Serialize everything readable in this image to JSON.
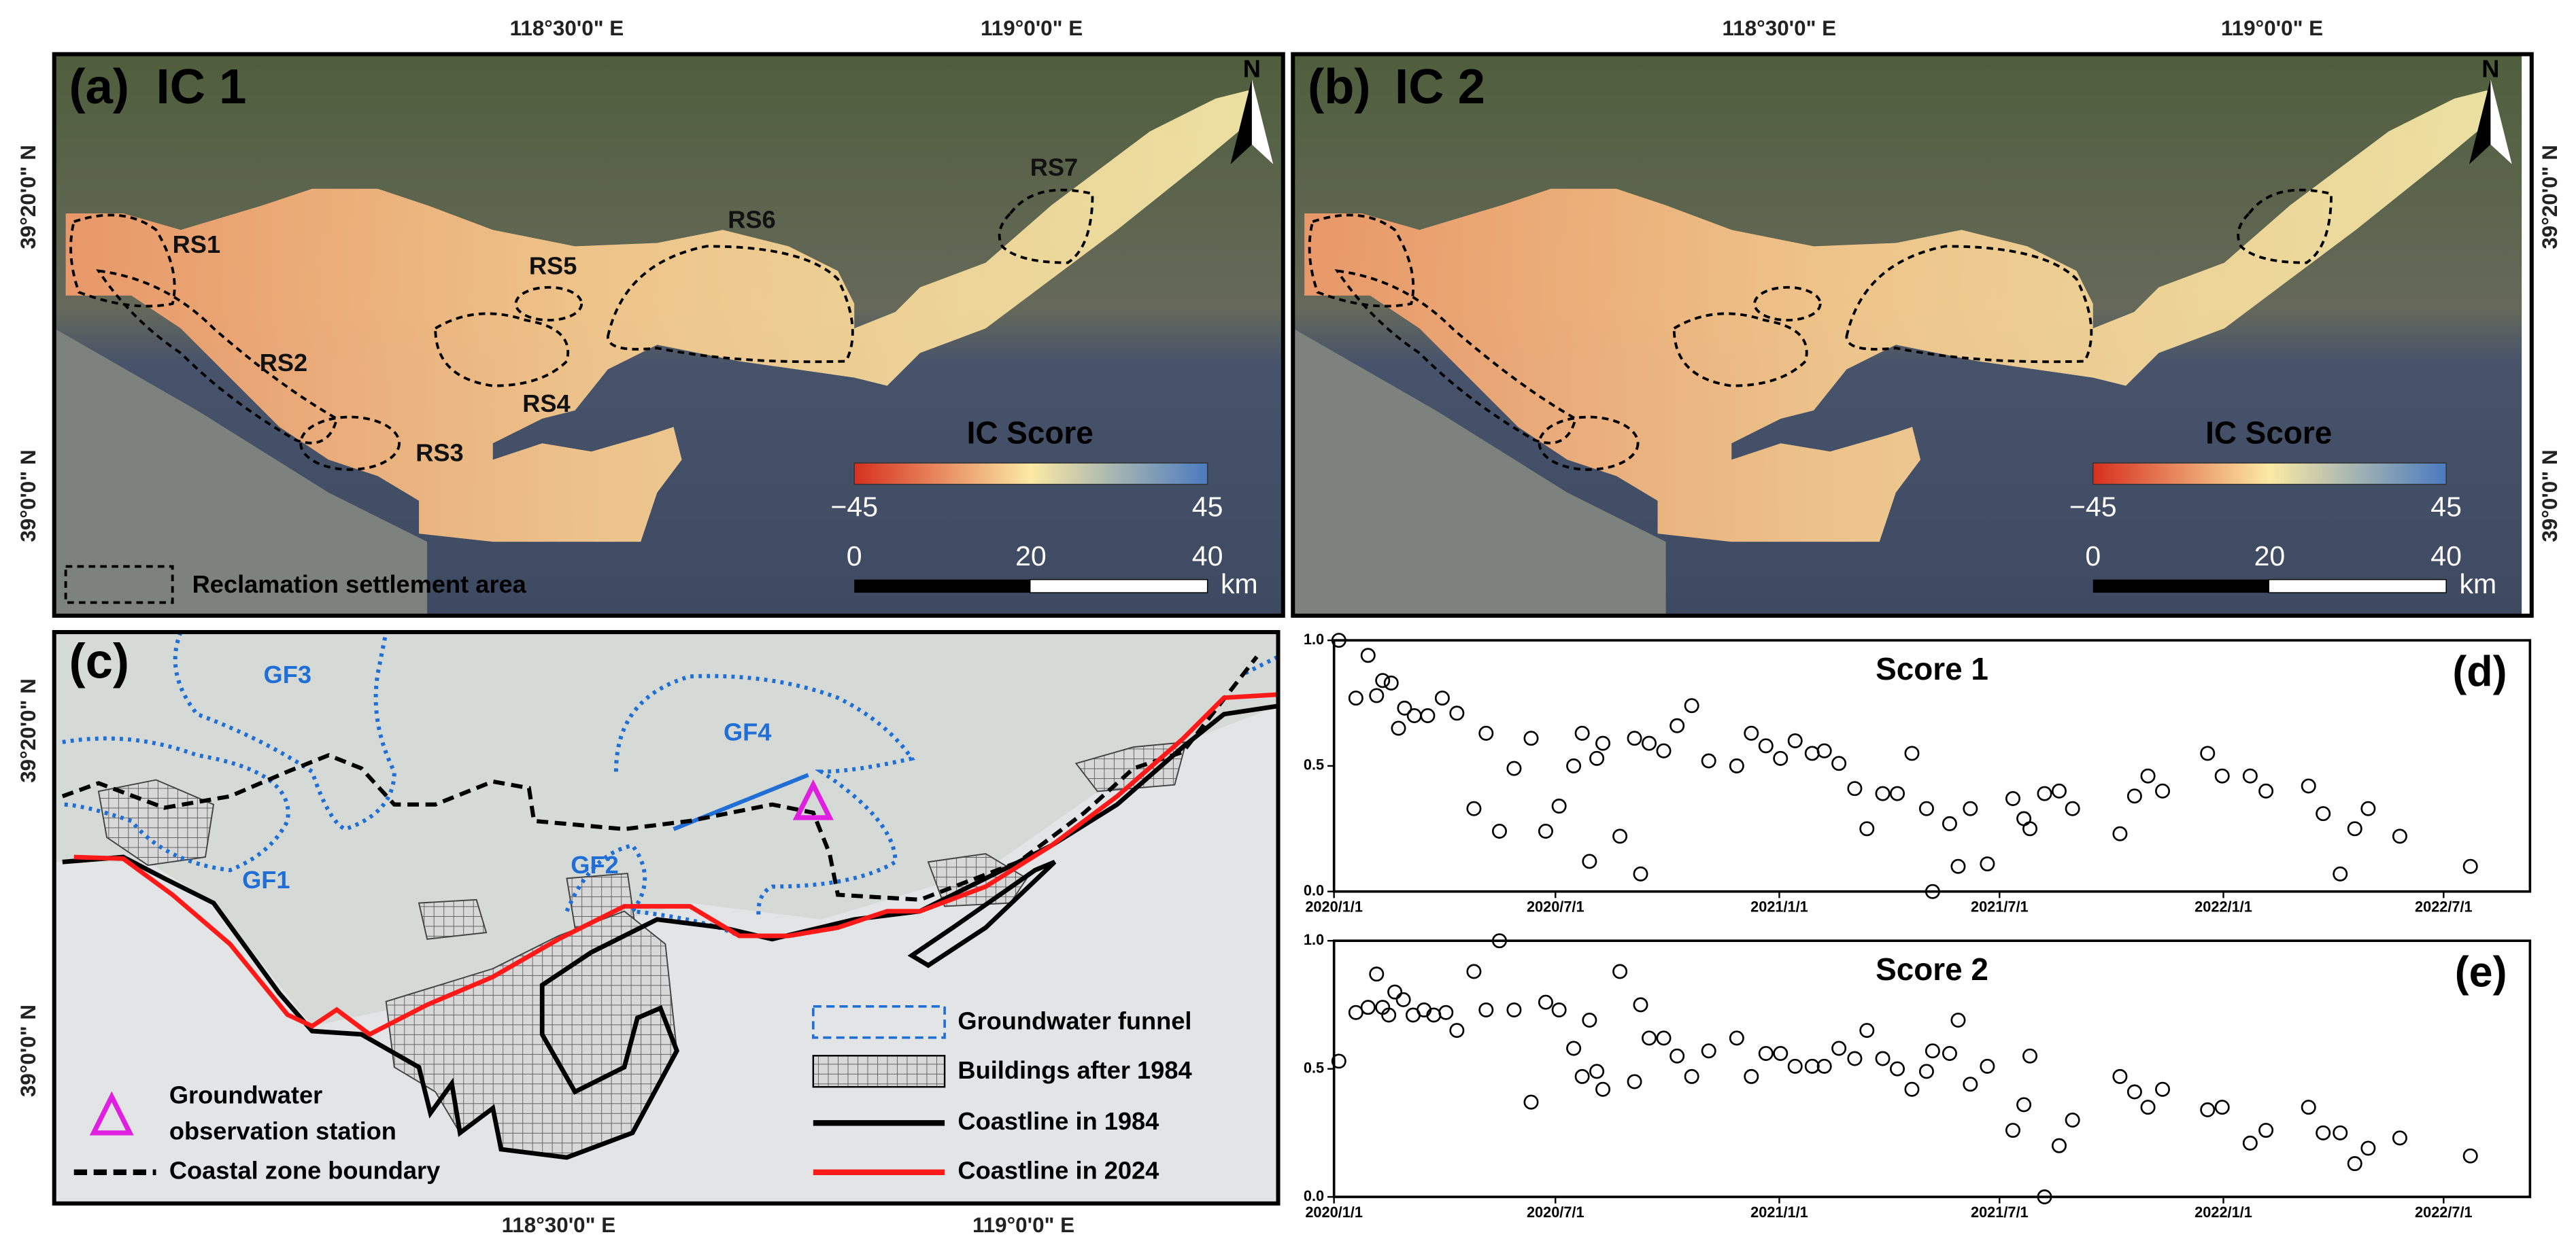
{
  "maps": {
    "lon_labels": [
      "118°30'0\" E",
      "119°0'0\" E"
    ],
    "lat_labels": [
      "39°20'0\" N",
      "39°0'0\" N"
    ],
    "north": "N",
    "a": {
      "label": "(a)",
      "title": "IC 1",
      "sites": [
        "RS1",
        "RS2",
        "RS3",
        "RS4",
        "RS5",
        "RS6",
        "RS7"
      ],
      "legend": "Reclamation settlement area"
    },
    "b": {
      "label": "(b)",
      "title": "IC 2"
    },
    "colorbar": {
      "title": "IC Score",
      "min": "−45",
      "max": "45"
    },
    "scalebar": {
      "ticks": [
        "0",
        "20",
        "40"
      ],
      "unit": "km"
    },
    "c": {
      "label": "(c)",
      "funnels": [
        "GF1",
        "GF2",
        "GF3",
        "GF4"
      ],
      "station": [
        "Groundwater",
        "observation station"
      ],
      "boundary": "Coastal zone boundary",
      "legend": [
        "Groundwater funnel",
        "Buildings after 1984",
        "Coastline in 1984",
        "Coastline in 2024"
      ]
    }
  },
  "chart_data": [
    {
      "type": "scatter",
      "title": "Score 1",
      "panel_label": "(d)",
      "color": "#000000",
      "x": [
        "2020/1/5",
        "2020/1/19",
        "2020/1/29",
        "2020/2/5",
        "2020/2/10",
        "2020/2/17",
        "2020/2/23",
        "2020/2/28",
        "2020/3/7",
        "2020/3/18",
        "2020/3/30",
        "2020/4/11",
        "2020/4/25",
        "2020/5/5",
        "2020/5/16",
        "2020/5/28",
        "2020/6/11",
        "2020/6/23",
        "2020/7/4",
        "2020/7/16",
        "2020/7/23",
        "2020/7/29",
        "2020/8/4",
        "2020/8/9",
        "2020/8/23",
        "2020/9/4",
        "2020/9/9",
        "2020/9/16",
        "2020/9/28",
        "2020/10/9",
        "2020/10/21",
        "2020/11/4",
        "2020/11/27",
        "2020/12/9",
        "2020/12/21",
        "2021/1/2",
        "2021/1/14",
        "2021/1/28",
        "2021/2/7",
        "2021/2/19",
        "2021/3/4",
        "2021/3/14",
        "2021/3/27",
        "2021/4/8",
        "2021/4/20",
        "2021/5/2",
        "2021/5/7",
        "2021/5/21",
        "2021/5/28",
        "2021/6/7",
        "2021/6/21",
        "2021/7/12",
        "2021/7/21",
        "2021/7/26",
        "2021/8/7",
        "2021/8/19",
        "2021/8/30",
        "2021/10/8",
        "2021/10/20",
        "2021/10/31",
        "2021/11/12",
        "2021/12/19",
        "2021/12/31",
        "2022/1/23",
        "2022/2/5",
        "2022/3/12",
        "2022/3/24",
        "2022/4/7",
        "2022/4/19",
        "2022/4/30",
        "2022/5/26",
        "2022/7/23"
      ],
      "values": [
        1.0,
        0.77,
        0.94,
        0.78,
        0.84,
        0.83,
        0.65,
        0.73,
        0.7,
        0.7,
        0.77,
        0.71,
        0.33,
        0.63,
        0.24,
        0.49,
        0.61,
        0.24,
        0.34,
        0.5,
        0.63,
        0.12,
        0.53,
        0.59,
        0.22,
        0.61,
        0.07,
        0.59,
        0.56,
        0.66,
        0.74,
        0.52,
        0.5,
        0.63,
        0.58,
        0.53,
        0.6,
        0.55,
        0.56,
        0.51,
        0.41,
        0.25,
        0.39,
        0.39,
        0.55,
        0.33,
        0.0,
        0.27,
        0.1,
        0.33,
        0.11,
        0.37,
        0.29,
        0.25,
        0.39,
        0.4,
        0.33,
        0.23,
        0.38,
        0.46,
        0.4,
        0.55,
        0.46,
        0.46,
        0.4,
        0.42,
        0.31,
        0.07,
        0.25,
        0.33,
        0.22,
        0.1
      ],
      "xlim": [
        "2020/1/1",
        "2022/9/10"
      ],
      "xticks": [
        "2020/1/1",
        "2020/7/1",
        "2021/1/1",
        "2021/7/1",
        "2022/1/1",
        "2022/7/1"
      ],
      "ylim": [
        0,
        1
      ],
      "yticks": [
        {
          "value": 0,
          "label": "0.0"
        },
        {
          "value": 0.5,
          "label": "0.5"
        },
        {
          "value": 1,
          "label": "1.0"
        }
      ],
      "grid": false
    },
    {
      "type": "scatter",
      "title": "Score 2",
      "panel_label": "(e)",
      "color": "#000000",
      "x": [
        "2020/1/5",
        "2020/1/19",
        "2020/1/29",
        "2020/2/5",
        "2020/2/10",
        "2020/2/15",
        "2020/2/20",
        "2020/2/27",
        "2020/3/6",
        "2020/3/15",
        "2020/3/23",
        "2020/4/2",
        "2020/4/11",
        "2020/4/25",
        "2020/5/5",
        "2020/5/16",
        "2020/5/28",
        "2020/6/11",
        "2020/6/23",
        "2020/7/4",
        "2020/7/16",
        "2020/7/23",
        "2020/7/29",
        "2020/8/4",
        "2020/8/9",
        "2020/8/23",
        "2020/9/4",
        "2020/9/9",
        "2020/9/16",
        "2020/9/28",
        "2020/10/9",
        "2020/10/21",
        "2020/11/4",
        "2020/11/27",
        "2020/12/9",
        "2020/12/21",
        "2021/1/2",
        "2021/1/14",
        "2021/1/28",
        "2021/2/7",
        "2021/2/19",
        "2021/3/4",
        "2021/3/14",
        "2021/3/27",
        "2021/4/8",
        "2021/4/20",
        "2021/5/2",
        "2021/5/7",
        "2021/5/21",
        "2021/5/28",
        "2021/6/7",
        "2021/6/21",
        "2021/7/12",
        "2021/7/21",
        "2021/7/26",
        "2021/8/7",
        "2021/8/19",
        "2021/8/30",
        "2021/10/8",
        "2021/10/20",
        "2021/10/31",
        "2021/11/12",
        "2021/12/19",
        "2021/12/31",
        "2022/1/23",
        "2022/2/5",
        "2022/3/12",
        "2022/3/24",
        "2022/4/7",
        "2022/4/19",
        "2022/4/30",
        "2022/5/26",
        "2022/7/23"
      ],
      "values": [
        0.53,
        0.72,
        0.74,
        0.87,
        0.74,
        0.71,
        0.8,
        0.77,
        0.71,
        0.73,
        0.71,
        0.72,
        0.65,
        0.88,
        0.73,
        1.0,
        0.73,
        0.37,
        0.76,
        0.73,
        0.58,
        0.47,
        0.69,
        0.49,
        0.42,
        0.88,
        0.45,
        0.75,
        0.62,
        0.62,
        0.55,
        0.47,
        0.57,
        0.62,
        0.47,
        0.56,
        0.56,
        0.51,
        0.51,
        0.51,
        0.58,
        0.54,
        0.65,
        0.54,
        0.5,
        0.42,
        0.49,
        0.57,
        0.56,
        0.69,
        0.44,
        0.51,
        0.26,
        0.36,
        0.55,
        0.0,
        0.2,
        0.3,
        0.47,
        0.41,
        0.35,
        0.42,
        0.34,
        0.35,
        0.21,
        0.26,
        0.35,
        0.25,
        0.25,
        0.13,
        0.19,
        0.23,
        0.16
      ],
      "xlim": [
        "2020/1/1",
        "2022/9/10"
      ],
      "xticks": [
        "2020/1/1",
        "2020/7/1",
        "2021/1/1",
        "2021/7/1",
        "2022/1/1",
        "2022/7/1"
      ],
      "ylim": [
        0,
        1
      ],
      "yticks": [
        {
          "value": 0,
          "label": "0.0"
        },
        {
          "value": 0.5,
          "label": "0.5"
        },
        {
          "value": 1,
          "label": "1.0"
        }
      ],
      "grid": false
    }
  ]
}
